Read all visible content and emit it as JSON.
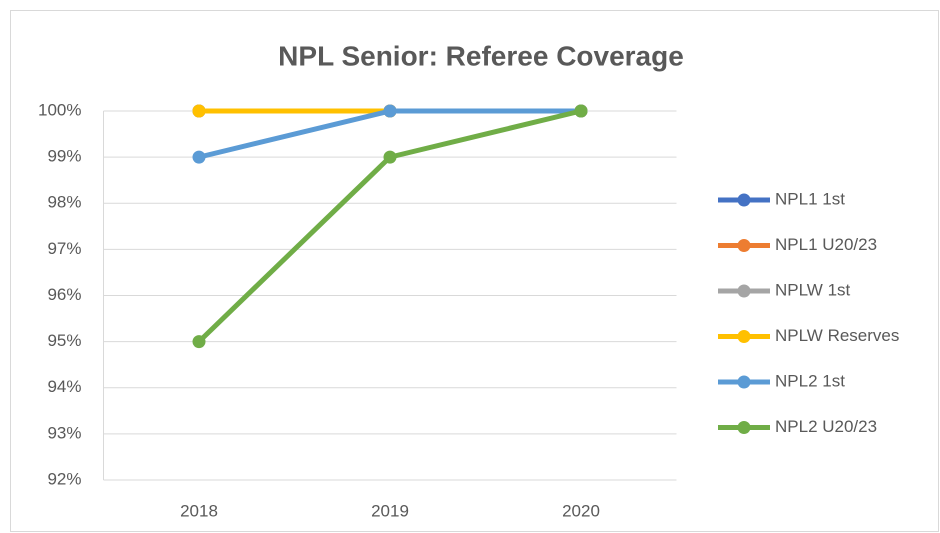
{
  "chart_data": {
    "type": "line",
    "title": "NPL Senior: Referee Coverage",
    "categories": [
      "2018",
      "2019",
      "2020"
    ],
    "series": [
      {
        "name": "NPL1 1st",
        "color": "#4472c4",
        "values": [
          100,
          100,
          100
        ]
      },
      {
        "name": "NPL1 U20/23",
        "color": "#ed7d31",
        "values": [
          100,
          100,
          100
        ]
      },
      {
        "name": "NPLW 1st",
        "color": "#a5a5a5",
        "values": [
          100,
          100,
          100
        ]
      },
      {
        "name": "NPLW Reserves",
        "color": "#ffc000",
        "values": [
          100,
          100,
          100
        ]
      },
      {
        "name": "NPL2 1st",
        "color": "#5b9bd5",
        "values": [
          99,
          100,
          100
        ]
      },
      {
        "name": "NPL2 U20/23",
        "color": "#70ad47",
        "values": [
          95,
          99,
          100
        ]
      }
    ],
    "ylim": [
      92,
      100
    ],
    "yticks": [
      {
        "value": 92,
        "label": "92%"
      },
      {
        "value": 93,
        "label": "93%"
      },
      {
        "value": 94,
        "label": "94%"
      },
      {
        "value": 95,
        "label": "95%"
      },
      {
        "value": 96,
        "label": "96%"
      },
      {
        "value": 97,
        "label": "97%"
      },
      {
        "value": 98,
        "label": "98%"
      },
      {
        "value": 99,
        "label": "99%"
      },
      {
        "value": 100,
        "label": "100%"
      }
    ],
    "grid": true,
    "legend": "right"
  }
}
